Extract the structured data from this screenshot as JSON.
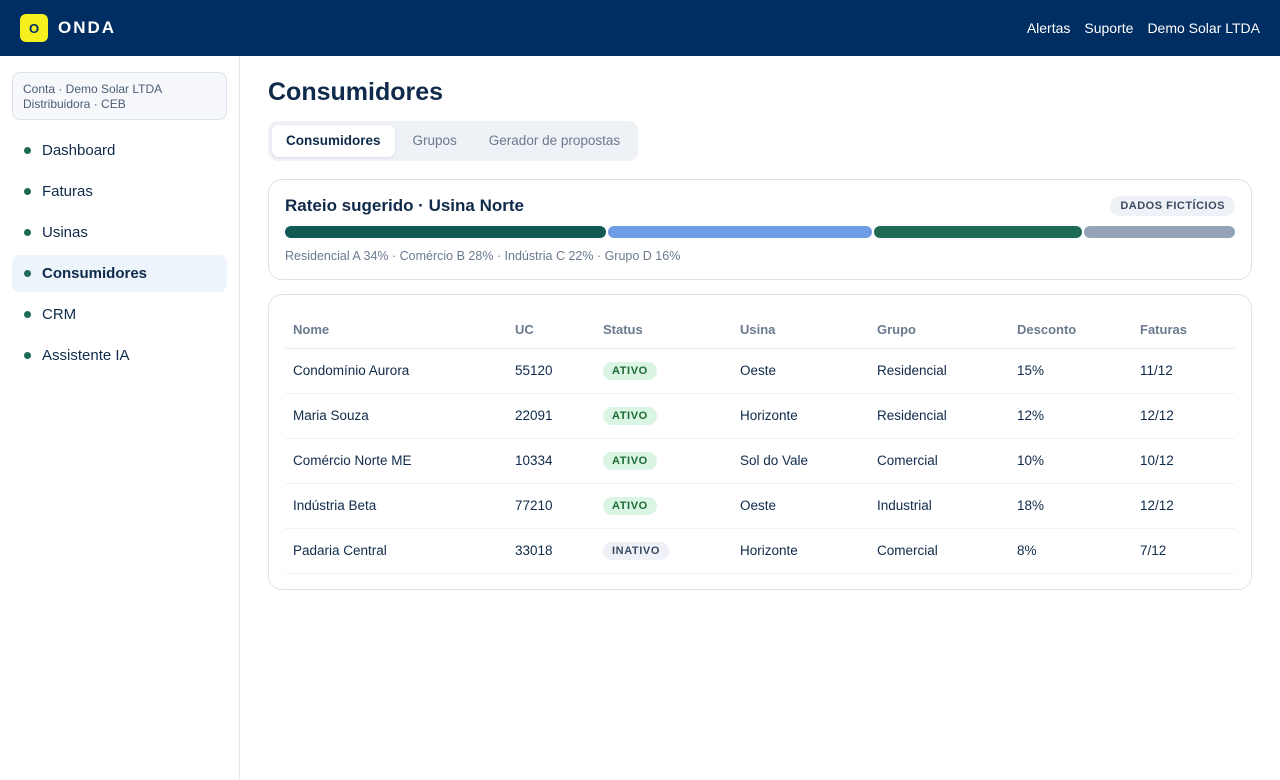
{
  "brand": {
    "logo_letter": "O",
    "name": "ONDA"
  },
  "top_links": [
    "Alertas",
    "Suporte",
    "Demo Solar LTDA"
  ],
  "account": {
    "line1": "Conta · Demo Solar LTDA",
    "line2": "Distribuidora · CEB"
  },
  "sidebar": {
    "items": [
      {
        "label": "Dashboard",
        "active": false
      },
      {
        "label": "Faturas",
        "active": false
      },
      {
        "label": "Usinas",
        "active": false
      },
      {
        "label": "Consumidores",
        "active": true
      },
      {
        "label": "CRM",
        "active": false
      },
      {
        "label": "Assistente IA",
        "active": false
      }
    ]
  },
  "page": {
    "title": "Consumidores"
  },
  "tabs": [
    {
      "label": "Consumidores",
      "active": true
    },
    {
      "label": "Grupos",
      "active": false
    },
    {
      "label": "Gerador de propostas",
      "active": false
    }
  ],
  "rateio": {
    "title": "Rateio sugerido · Usina Norte",
    "badge": "DADOS FICTÍCIOS",
    "segments": [
      {
        "label": "Residencial A",
        "percent": 34,
        "color": "#0f5a55"
      },
      {
        "label": "Comércio B",
        "percent": 28,
        "color": "#6f9ee6"
      },
      {
        "label": "Indústria C",
        "percent": 22,
        "color": "#1d6a55"
      },
      {
        "label": "Grupo D",
        "percent": 16,
        "color": "#94a3b8"
      }
    ],
    "legend_text": "Residencial A 34% · Comércio B 28% · Indústria C 22% · Grupo D 16%"
  },
  "table": {
    "columns": [
      "Nome",
      "UC",
      "Status",
      "Usina",
      "Grupo",
      "Desconto",
      "Faturas"
    ],
    "rows": [
      [
        "Condomínio Aurora",
        "55120",
        "ATIVO",
        "Oeste",
        "Residencial",
        "15%",
        "11/12"
      ],
      [
        "Maria Souza",
        "22091",
        "ATIVO",
        "Horizonte",
        "Residencial",
        "12%",
        "12/12"
      ],
      [
        "Comércio Norte ME",
        "10334",
        "ATIVO",
        "Sol do Vale",
        "Comercial",
        "10%",
        "10/12"
      ],
      [
        "Indústria Beta",
        "77210",
        "ATIVO",
        "Oeste",
        "Industrial",
        "18%",
        "12/12"
      ],
      [
        "Padaria Central",
        "33018",
        "INATIVO",
        "Horizonte",
        "Comercial",
        "8%",
        "7/12"
      ]
    ]
  }
}
